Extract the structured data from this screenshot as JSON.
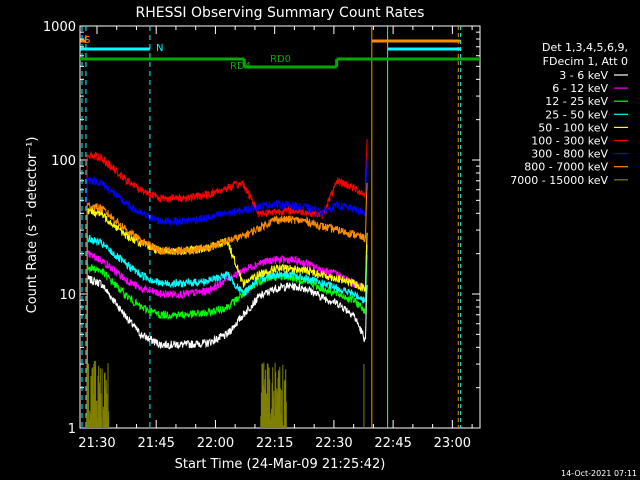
{
  "chart_data": {
    "type": "line",
    "title": "RHESSI Observing Summary Count Rates",
    "xlabel": "Start Time (24-Mar-09 21:25:42)",
    "ylabel": "Count Rate (s⁻¹ detector⁻¹)",
    "ylim": [
      1,
      1000
    ],
    "yscale": "log",
    "xlim_min": [
      85.7,
      1387
    ],
    "x_ticks": [
      {
        "label": "21:30",
        "min": 1290
      },
      {
        "label": "21:45",
        "min": 1305
      },
      {
        "label": "22:00",
        "min": 1320
      },
      {
        "label": "22:15",
        "min": 1335
      },
      {
        "label": "22:30",
        "min": 1350
      },
      {
        "label": "22:45",
        "min": 1365
      },
      {
        "label": "23:00",
        "min": 1380
      }
    ],
    "y_ticks": [
      {
        "label": "1",
        "v": 1
      },
      {
        "label": "10",
        "v": 10
      },
      {
        "label": "100",
        "v": 100
      },
      {
        "label": "1000",
        "v": 1000
      }
    ],
    "legend_header": [
      "Det 1,3,4,5,6,9,",
      "FDecim 1, Att 0"
    ],
    "timestamp": "14-Oct-2021 07:11",
    "series": [
      {
        "name": "3 - 6 keV",
        "color": "#ffffff",
        "anchors": [
          [
            1287.5,
            13
          ],
          [
            1291,
            12
          ],
          [
            1297,
            7
          ],
          [
            1301,
            5
          ],
          [
            1306,
            4.2
          ],
          [
            1312,
            4.2
          ],
          [
            1318,
            4.3
          ],
          [
            1323,
            5
          ],
          [
            1327,
            7
          ],
          [
            1331,
            9.5
          ],
          [
            1335,
            11
          ],
          [
            1339,
            11.5
          ],
          [
            1343,
            11
          ],
          [
            1347,
            9.5
          ],
          [
            1351,
            8.5
          ],
          [
            1355,
            7
          ],
          [
            1358,
            4.5
          ]
        ]
      },
      {
        "name": "6 - 12 keV",
        "color": "#ff00ff",
        "anchors": [
          [
            1287.5,
            20
          ],
          [
            1291,
            18
          ],
          [
            1297,
            13
          ],
          [
            1301,
            11
          ],
          [
            1306,
            10
          ],
          [
            1312,
            10
          ],
          [
            1318,
            10.5
          ],
          [
            1323,
            13
          ],
          [
            1327,
            15
          ],
          [
            1331,
            17
          ],
          [
            1335,
            18
          ],
          [
            1339,
            18
          ],
          [
            1343,
            17
          ],
          [
            1347,
            15
          ],
          [
            1351,
            14
          ],
          [
            1355,
            12
          ],
          [
            1358,
            11
          ]
        ]
      },
      {
        "name": "12 - 25 keV",
        "color": "#00ff00",
        "anchors": [
          [
            1287.5,
            16
          ],
          [
            1291,
            15
          ],
          [
            1297,
            10
          ],
          [
            1301,
            8
          ],
          [
            1306,
            7
          ],
          [
            1312,
            7
          ],
          [
            1318,
            7.2
          ],
          [
            1323,
            8
          ],
          [
            1327,
            10
          ],
          [
            1331,
            12.5
          ],
          [
            1335,
            13.5
          ],
          [
            1339,
            13.5
          ],
          [
            1343,
            12.5
          ],
          [
            1347,
            11
          ],
          [
            1351,
            10
          ],
          [
            1355,
            9
          ],
          [
            1358,
            7.5
          ]
        ]
      },
      {
        "name": "25 - 50 keV",
        "color": "#00ffff",
        "anchors": [
          [
            1287.5,
            26
          ],
          [
            1291,
            24
          ],
          [
            1297,
            17
          ],
          [
            1301,
            14
          ],
          [
            1306,
            12
          ],
          [
            1312,
            12
          ],
          [
            1318,
            12.5
          ],
          [
            1323,
            14
          ],
          [
            1327,
            10
          ],
          [
            1331,
            13
          ],
          [
            1335,
            14
          ],
          [
            1339,
            14
          ],
          [
            1343,
            13
          ],
          [
            1347,
            12
          ],
          [
            1351,
            11
          ],
          [
            1355,
            10
          ],
          [
            1358,
            9
          ]
        ]
      },
      {
        "name": "50 - 100 keV",
        "color": "#ffff00",
        "anchors": [
          [
            1287.5,
            42
          ],
          [
            1291,
            40
          ],
          [
            1297,
            28
          ],
          [
            1301,
            24
          ],
          [
            1306,
            21
          ],
          [
            1312,
            21
          ],
          [
            1318,
            22
          ],
          [
            1323,
            25
          ],
          [
            1327,
            12
          ],
          [
            1331,
            14
          ],
          [
            1335,
            15.5
          ],
          [
            1339,
            15.5
          ],
          [
            1343,
            15
          ],
          [
            1347,
            14
          ],
          [
            1351,
            13
          ],
          [
            1355,
            12
          ],
          [
            1358,
            11
          ]
        ]
      },
      {
        "name": "100 - 300 keV",
        "color": "#ff0000",
        "anchors": [
          [
            1287.5,
            110
          ],
          [
            1291,
            105
          ],
          [
            1297,
            72
          ],
          [
            1301,
            60
          ],
          [
            1306,
            52
          ],
          [
            1312,
            52
          ],
          [
            1318,
            55
          ],
          [
            1323,
            62
          ],
          [
            1327,
            67
          ],
          [
            1331,
            40
          ],
          [
            1335,
            41
          ],
          [
            1339,
            42
          ],
          [
            1343,
            41
          ],
          [
            1347,
            39
          ],
          [
            1351,
            70
          ],
          [
            1355,
            62
          ],
          [
            1358,
            55
          ]
        ]
      },
      {
        "name": "300 - 800 keV",
        "color": "#0000ff",
        "anchors": [
          [
            1287.5,
            72
          ],
          [
            1291,
            68
          ],
          [
            1297,
            48
          ],
          [
            1301,
            40
          ],
          [
            1306,
            35
          ],
          [
            1312,
            35
          ],
          [
            1318,
            37
          ],
          [
            1323,
            40
          ],
          [
            1327,
            42
          ],
          [
            1331,
            45
          ],
          [
            1335,
            47
          ],
          [
            1339,
            46
          ],
          [
            1343,
            44
          ],
          [
            1347,
            41
          ],
          [
            1351,
            46
          ],
          [
            1355,
            43
          ],
          [
            1358,
            40
          ]
        ]
      },
      {
        "name": "800 - 7000 keV",
        "color": "#ff8c00",
        "anchors": [
          [
            1287.5,
            46
          ],
          [
            1291,
            44
          ],
          [
            1297,
            31
          ],
          [
            1301,
            25
          ],
          [
            1306,
            21
          ],
          [
            1312,
            21
          ],
          [
            1318,
            22
          ],
          [
            1323,
            25
          ],
          [
            1327,
            27
          ],
          [
            1331,
            31
          ],
          [
            1335,
            36
          ],
          [
            1339,
            36
          ],
          [
            1343,
            35
          ],
          [
            1347,
            32
          ],
          [
            1351,
            30
          ],
          [
            1355,
            28
          ],
          [
            1358,
            26
          ]
        ]
      },
      {
        "name": "7000 - 15000 keV",
        "color": "#808000",
        "anchors": []
      }
    ],
    "annotations": [
      {
        "label": "S",
        "color": "#ff8c00"
      },
      {
        "label": "N",
        "color": "#00ffff"
      },
      {
        "label": "RD0",
        "color": "#00aa00"
      },
      {
        "label": "RD4",
        "color": "#00aa00"
      }
    ]
  }
}
